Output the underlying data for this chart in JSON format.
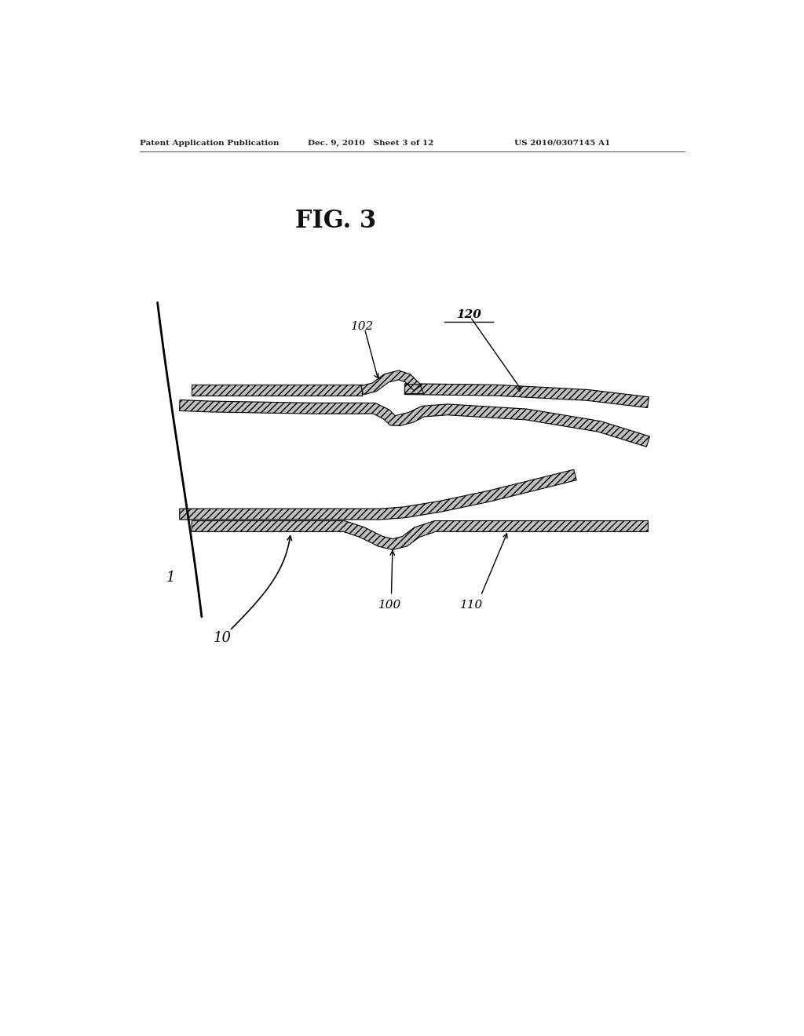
{
  "bg": "#ffffff",
  "lc": "#000000",
  "pc": "#c0c0c0",
  "hatch": "////",
  "header_left": "Patent Application Publication",
  "header_mid": "Dec. 9, 2010   Sheet 3 of 12",
  "header_right": "US 2010/0307145 A1",
  "fig_label": "FIG. 3",
  "plate_thick": 1.8
}
